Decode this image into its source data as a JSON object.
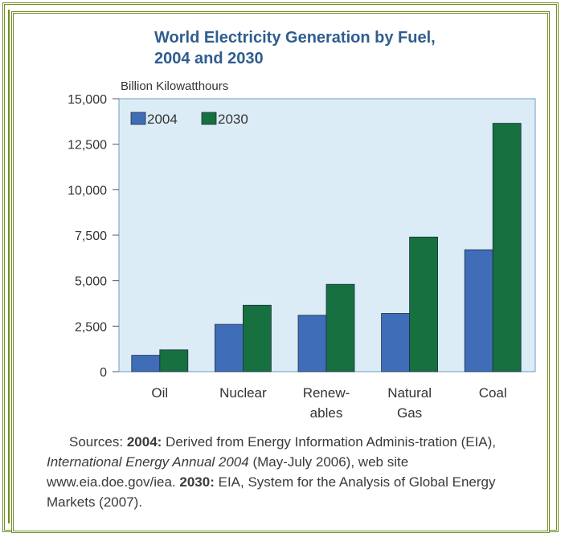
{
  "chart_data": {
    "type": "bar",
    "title": "World Electricity Generation by Fuel,\n2004 and 2030",
    "ylabel": "Billion Kilowatthours",
    "ylim": [
      0,
      15000
    ],
    "yticks": [
      "15,000",
      "12,500",
      "10,000",
      "7,500",
      "5,000",
      "2,500",
      "0"
    ],
    "ytick_values": [
      15000,
      12500,
      10000,
      7500,
      5000,
      2500,
      0
    ],
    "categories": [
      "Oil",
      "Nuclear",
      "Renew-\nables",
      "Natural\nGas",
      "Coal"
    ],
    "series": [
      {
        "name": "2004",
        "color": "#3f6db7",
        "values": [
          900,
          2600,
          3100,
          3200,
          6700
        ]
      },
      {
        "name": "2030",
        "color": "#16703f",
        "values": [
          1200,
          3650,
          4800,
          7400,
          13650
        ]
      }
    ],
    "legend_position": "top-left",
    "grid": false
  },
  "colors": {
    "frame": "#6f8f22",
    "plot_background": "#dcecf6",
    "title_text": "#2f5d8f"
  },
  "sources": {
    "label": "Sources:",
    "y1_label": "2004:",
    "y1_text": "Derived from Energy Information Adminis-tration (EIA),",
    "publication": "International Energy Annual 2004",
    "y1_tail": "(May-July 2006), web site www.eia.doe.gov/iea.",
    "y2_label": "2030:",
    "y2_text": "EIA, System for the Analysis of Global Energy Markets (2007)."
  }
}
